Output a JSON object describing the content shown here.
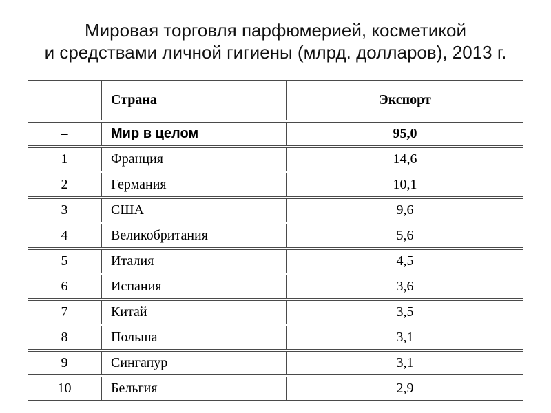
{
  "title": {
    "line1": "Мировая торговля парфюмерией, косметикой",
    "line2": "и средствами личной гигиены (млрд. долларов), 2013 г."
  },
  "table": {
    "columns": {
      "rank": "",
      "country": "Страна",
      "export": "Экспорт"
    },
    "total_row": {
      "rank": "–",
      "country": "Мир в целом",
      "export": "95,0"
    },
    "rows": [
      {
        "rank": "1",
        "country": "Франция",
        "export": "14,6"
      },
      {
        "rank": "2",
        "country": "Германия",
        "export": "10,1"
      },
      {
        "rank": "3",
        "country": "США",
        "export": "9,6"
      },
      {
        "rank": "4",
        "country": "Великобритания",
        "export": "5,6"
      },
      {
        "rank": "5",
        "country": "Италия",
        "export": "4,5"
      },
      {
        "rank": "6",
        "country": "Испания",
        "export": "3,6"
      },
      {
        "rank": "7",
        "country": "Китай",
        "export": "3,5"
      },
      {
        "rank": "8",
        "country": "Польша",
        "export": "3,1"
      },
      {
        "rank": "9",
        "country": "Сингапур",
        "export": "3,1"
      },
      {
        "rank": "10",
        "country": "Бельгия",
        "export": "2,9"
      }
    ]
  },
  "colors": {
    "background": "#ffffff",
    "text": "#000000",
    "border": "#4a4a4a"
  }
}
